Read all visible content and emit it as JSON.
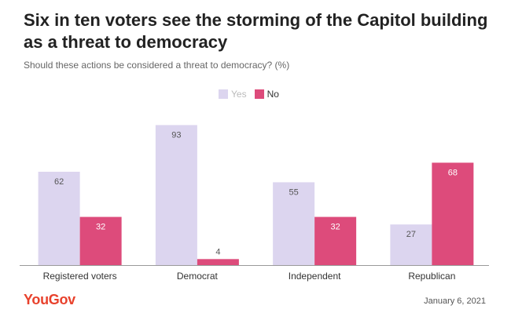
{
  "header": {
    "title": "Six in ten voters see the storming of the Capitol building as a threat to democracy",
    "subtitle": "Should these actions be considered a threat to democracy? (%)"
  },
  "footer": {
    "brand": "YouGov",
    "date": "January 6, 2021"
  },
  "colors": {
    "yes": "#dcd5ef",
    "no": "#dd4b7b"
  },
  "chart_data": {
    "type": "bar",
    "title": "Six in ten voters see the storming of the Capitol building as a threat to democracy",
    "subtitle": "Should these actions be considered a threat to democracy? (%)",
    "categories": [
      "Registered voters",
      "Democrat",
      "Independent",
      "Republican"
    ],
    "series": [
      {
        "name": "Yes",
        "values": [
          62,
          93,
          55,
          27
        ]
      },
      {
        "name": "No",
        "values": [
          32,
          4,
          32,
          68
        ]
      }
    ],
    "xlabel": "",
    "ylabel": "",
    "ylim": [
      0,
      100
    ],
    "legend": "top-center",
    "grid": false
  }
}
